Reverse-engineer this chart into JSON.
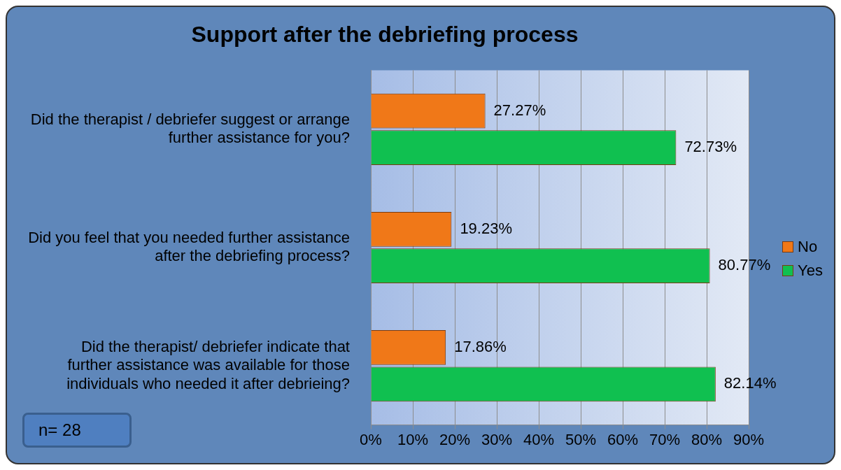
{
  "chart_data": {
    "type": "bar",
    "orientation": "horizontal",
    "title": "Support after the debriefing process",
    "categories": [
      "Did the therapist / debriefer suggest or arrange further assistance for you?",
      "Did you feel that you needed further assistance after the debriefing process?",
      "Did the therapist/ debriefer indicate that further assistance was available for those individuals who needed it after debrieing?"
    ],
    "series": [
      {
        "name": "No",
        "color": "#f07818",
        "values": [
          27.27,
          19.23,
          17.86
        ],
        "value_labels": [
          "27.27%",
          "19.23%",
          "17.86%"
        ]
      },
      {
        "name": "Yes",
        "color": "#10c050",
        "values": [
          72.73,
          80.77,
          82.14
        ],
        "value_labels": [
          "72.73%",
          "80.77%",
          "82.14%"
        ]
      }
    ],
    "xlim": [
      0,
      90
    ],
    "xticks": [
      {
        "value": 0,
        "label": "0%"
      },
      {
        "value": 10,
        "label": "10%"
      },
      {
        "value": 20,
        "label": "20%"
      },
      {
        "value": 30,
        "label": "30%"
      },
      {
        "value": 40,
        "label": "40%"
      },
      {
        "value": 50,
        "label": "50%"
      },
      {
        "value": 60,
        "label": "60%"
      },
      {
        "value": 70,
        "label": "70%"
      },
      {
        "value": 80,
        "label": "80%"
      },
      {
        "value": 90,
        "label": "90%"
      }
    ],
    "grid": "x",
    "legend": "right",
    "annotations": [
      "n= 28"
    ]
  }
}
